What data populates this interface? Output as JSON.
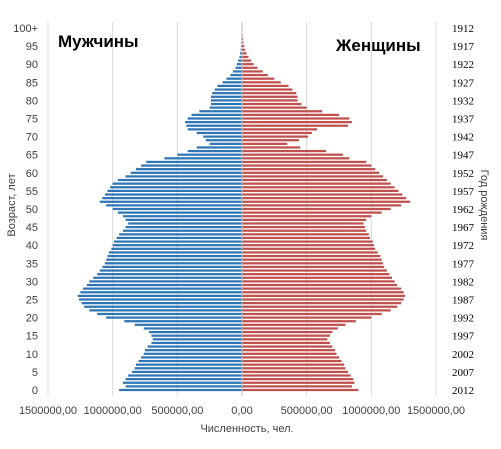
{
  "colors": {
    "male": "#2e75b6",
    "female": "#c0504d",
    "grid": "#d9d9d9",
    "axis": "#bfbfbf",
    "text": "#404040"
  },
  "chart_data": {
    "type": "bar",
    "orientation": "horizontal",
    "layout": "population-pyramid",
    "xlabel": "Численность, чел.",
    "ylabel": "Возраст, лет",
    "y2label": "Год рождения",
    "xlim": [
      -1500000,
      1500000
    ],
    "xticks": [
      -1500000,
      -1000000,
      -500000,
      0,
      500000,
      1000000,
      1500000
    ],
    "xtick_labels": [
      "1500000,00",
      "1000000,00",
      "500000,00",
      "0,00",
      "500000,00",
      "1000000,00",
      "1500000,00"
    ],
    "yticks": [
      0,
      5,
      10,
      15,
      20,
      25,
      30,
      35,
      40,
      45,
      50,
      55,
      60,
      65,
      70,
      75,
      80,
      85,
      90,
      95,
      100
    ],
    "ytick_labels": [
      "0",
      "5",
      "10",
      "15",
      "20",
      "25",
      "30",
      "35",
      "40",
      "45",
      "50",
      "55",
      "60",
      "65",
      "70",
      "75",
      "80",
      "85",
      "90",
      "95",
      "100+"
    ],
    "y2ticks": [
      0,
      5,
      10,
      15,
      20,
      25,
      30,
      35,
      40,
      45,
      50,
      55,
      60,
      65,
      70,
      75,
      80,
      85,
      90,
      95,
      100
    ],
    "y2tick_labels": [
      "2012",
      "2007",
      "2002",
      "1997",
      "1992",
      "1987",
      "1982",
      "1977",
      "1972",
      "1967",
      "1962",
      "1957",
      "1952",
      "1947",
      "1942",
      "1937",
      "1932",
      "1927",
      "1922",
      "1917",
      "1912"
    ],
    "grid": true,
    "ages": [
      0,
      1,
      2,
      3,
      4,
      5,
      6,
      7,
      8,
      9,
      10,
      11,
      12,
      13,
      14,
      15,
      16,
      17,
      18,
      19,
      20,
      21,
      22,
      23,
      24,
      25,
      26,
      27,
      28,
      29,
      30,
      31,
      32,
      33,
      34,
      35,
      36,
      37,
      38,
      39,
      40,
      41,
      42,
      43,
      44,
      45,
      46,
      47,
      48,
      49,
      50,
      51,
      52,
      53,
      54,
      55,
      56,
      57,
      58,
      59,
      60,
      61,
      62,
      63,
      64,
      65,
      66,
      67,
      68,
      69,
      70,
      71,
      72,
      73,
      74,
      75,
      76,
      77,
      78,
      79,
      80,
      81,
      82,
      83,
      84,
      85,
      86,
      87,
      88,
      89,
      90,
      91,
      92,
      93,
      94,
      95,
      96,
      97,
      98,
      99,
      100
    ],
    "series": [
      {
        "name": "Мужчины",
        "values": [
          950000,
          900000,
          920000,
          900000,
          880000,
          850000,
          830000,
          820000,
          800000,
          780000,
          760000,
          750000,
          730000,
          700000,
          690000,
          700000,
          720000,
          760000,
          830000,
          910000,
          1050000,
          1120000,
          1180000,
          1220000,
          1240000,
          1260000,
          1270000,
          1250000,
          1230000,
          1200000,
          1180000,
          1150000,
          1120000,
          1100000,
          1080000,
          1060000,
          1050000,
          1040000,
          1030000,
          1010000,
          1000000,
          990000,
          970000,
          950000,
          920000,
          900000,
          880000,
          900000,
          920000,
          960000,
          1000000,
          1050000,
          1100000,
          1080000,
          1060000,
          1040000,
          1020000,
          1000000,
          960000,
          900000,
          860000,
          820000,
          780000,
          740000,
          600000,
          500000,
          420000,
          350000,
          250000,
          280000,
          300000,
          350000,
          420000,
          430000,
          440000,
          420000,
          390000,
          330000,
          250000,
          240000,
          240000,
          240000,
          230000,
          210000,
          190000,
          150000,
          120000,
          90000,
          70000,
          50000,
          40000,
          30000,
          20000,
          15000,
          10000,
          8000,
          6000,
          5000,
          4000,
          3000,
          3000
        ]
      },
      {
        "name": "Женщины",
        "values": [
          900000,
          850000,
          870000,
          860000,
          840000,
          820000,
          800000,
          790000,
          770000,
          750000,
          730000,
          720000,
          700000,
          680000,
          660000,
          680000,
          700000,
          740000,
          800000,
          880000,
          1000000,
          1080000,
          1150000,
          1200000,
          1230000,
          1250000,
          1260000,
          1250000,
          1230000,
          1200000,
          1180000,
          1160000,
          1140000,
          1120000,
          1100000,
          1090000,
          1080000,
          1070000,
          1050000,
          1030000,
          1020000,
          1010000,
          990000,
          980000,
          960000,
          950000,
          940000,
          960000,
          1000000,
          1080000,
          1150000,
          1230000,
          1300000,
          1270000,
          1240000,
          1210000,
          1180000,
          1150000,
          1120000,
          1090000,
          1060000,
          1030000,
          1000000,
          960000,
          830000,
          780000,
          650000,
          450000,
          350000,
          440000,
          510000,
          540000,
          580000,
          820000,
          850000,
          830000,
          750000,
          620000,
          500000,
          460000,
          430000,
          430000,
          420000,
          390000,
          360000,
          300000,
          250000,
          200000,
          160000,
          120000,
          90000,
          70000,
          50000,
          35000,
          25000,
          18000,
          12000,
          9000,
          6000,
          4000,
          5000
        ]
      }
    ]
  },
  "panel_titles": {
    "male": "Мужчины",
    "female": "Женщины"
  }
}
